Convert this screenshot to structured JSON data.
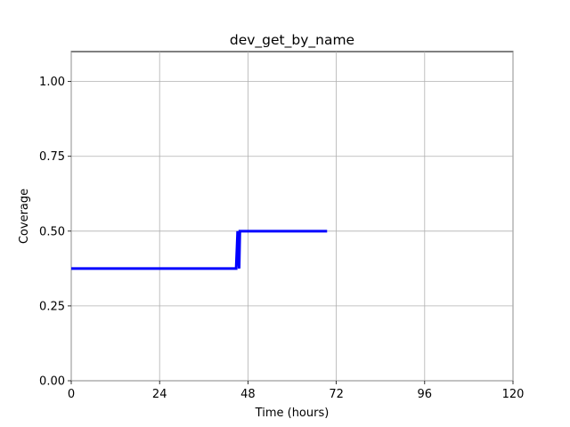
{
  "chart_data": {
    "type": "line",
    "title": "dev_get_by_name",
    "xlabel": "Time (hours)",
    "ylabel": "Coverage",
    "xlim": [
      0,
      120
    ],
    "ylim": [
      0,
      1.1
    ],
    "xticks": [
      0,
      24,
      48,
      72,
      96,
      120
    ],
    "xtick_labels": [
      "0",
      "24",
      "48",
      "72",
      "96",
      "120"
    ],
    "yticks": [
      0,
      0.25,
      0.5,
      0.75,
      1.0
    ],
    "ytick_labels": [
      "0.00",
      "0.25",
      "0.50",
      "0.75",
      "1.00"
    ],
    "grid": true,
    "series": [
      {
        "color": "#0000ff",
        "x": [
          0,
          44.8,
          45.2,
          45.6,
          45.8,
          69.5
        ],
        "y": [
          0.375,
          0.375,
          0.5,
          0.375,
          0.5,
          0.5
        ]
      }
    ]
  }
}
